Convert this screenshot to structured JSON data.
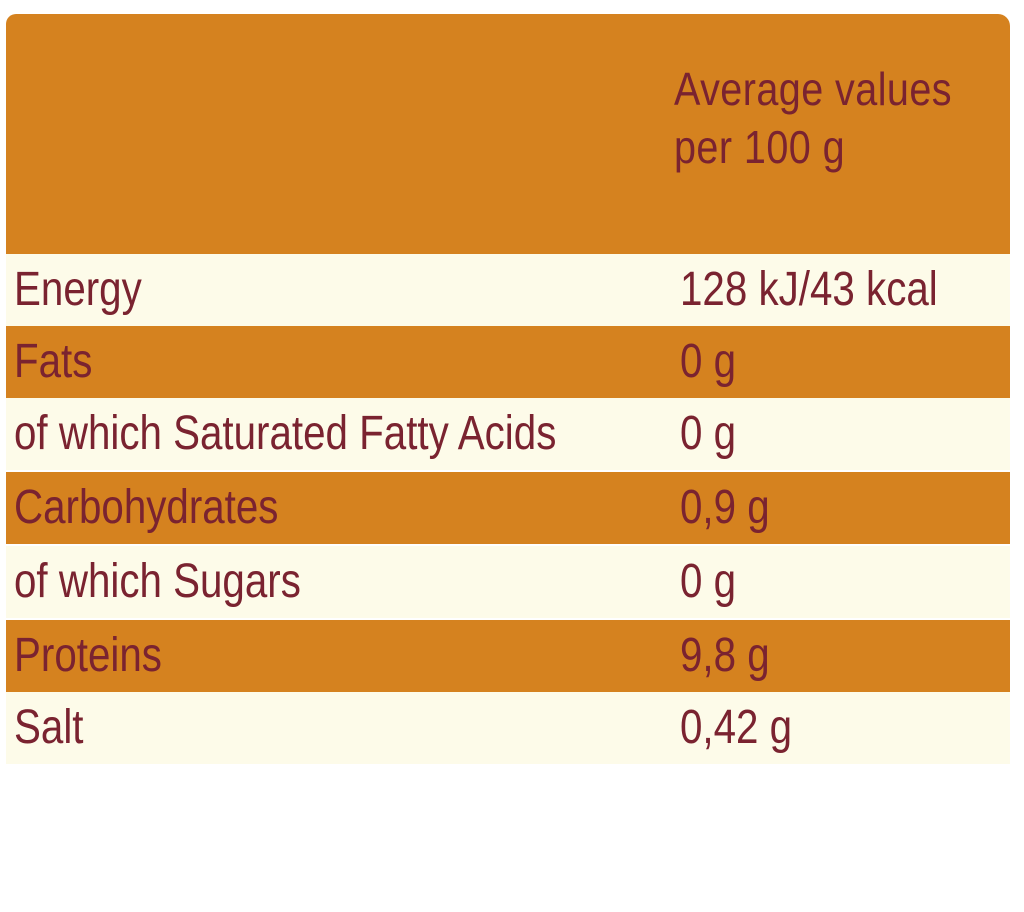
{
  "header": {
    "title": "Average values\nper 100 g"
  },
  "rows": [
    {
      "name": "Energy",
      "value": "128 kJ/43 kcal"
    },
    {
      "name": "Fats",
      "value": "0 g"
    },
    {
      "name": "of which Saturated Fatty Acids",
      "value": "0 g"
    },
    {
      "name": "Carbohydrates",
      "value": "0,9 g"
    },
    {
      "name": "of which Sugars",
      "value": "0 g"
    },
    {
      "name": "Proteins",
      "value": "9,8 g"
    },
    {
      "name": "Salt",
      "value": "0,42 g"
    }
  ],
  "colors": {
    "band_orange": "#d5821f",
    "band_cream": "#fdfbe9",
    "text": "#7a2330"
  }
}
